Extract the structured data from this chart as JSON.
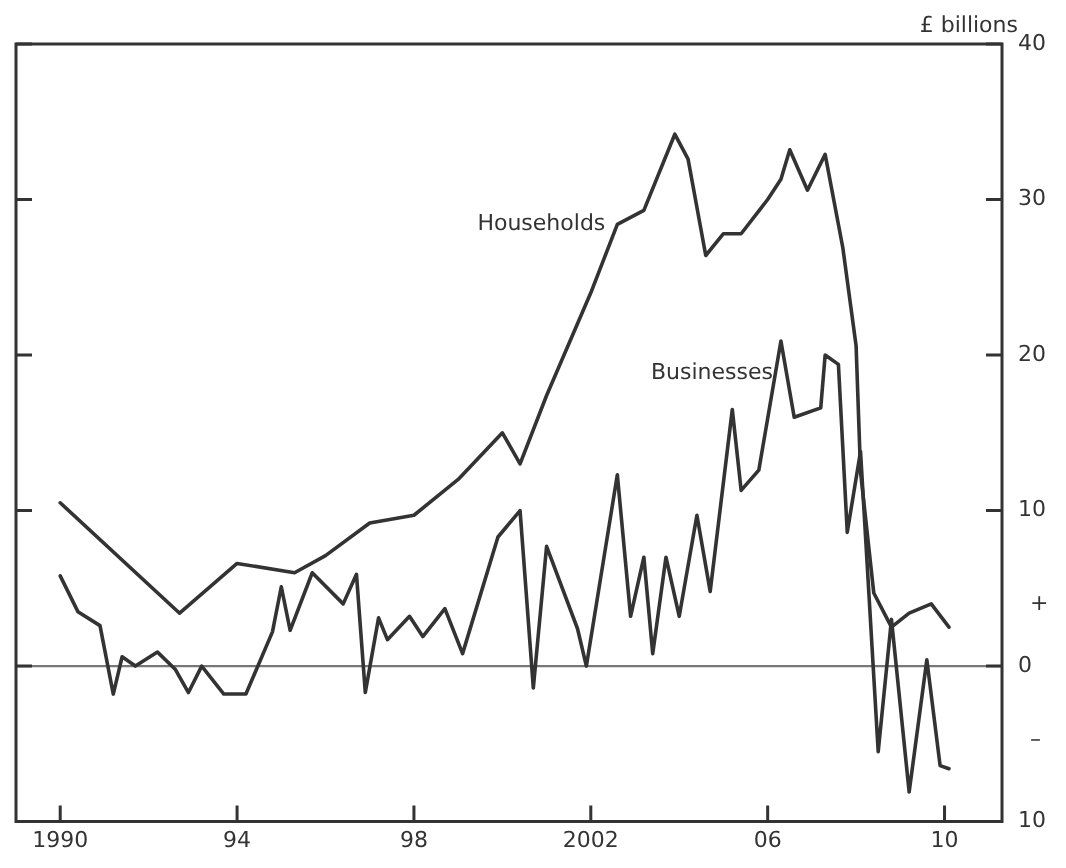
{
  "chart_data": {
    "type": "line",
    "ylabel": "£ billions",
    "xlim": [
      1989.0,
      2011.3
    ],
    "xticks": [
      {
        "value": 1990,
        "label": "1990"
      },
      {
        "value": 1994,
        "label": "94"
      },
      {
        "value": 1998,
        "label": "98"
      },
      {
        "value": 2002,
        "label": "2002"
      },
      {
        "value": 2006,
        "label": "06"
      },
      {
        "value": 2010,
        "label": "10"
      }
    ],
    "ylim": [
      -10,
      40
    ],
    "yticks": [
      {
        "value": -10,
        "label": "10"
      },
      0,
      10,
      20,
      30,
      40
    ],
    "annotations": [
      "+",
      "–"
    ],
    "ref_lines": [
      {
        "axis": "y",
        "value": 0,
        "color": "#777777"
      }
    ],
    "grid": false,
    "legend": false,
    "marker": "none",
    "line_style": "solid",
    "series": [
      {
        "name": "Households",
        "color": "#333333",
        "x": [
          1990.0,
          1992.7,
          1994.0,
          1995.3,
          1996.0,
          1997.0,
          1998.0,
          1999.0,
          2000.0,
          2000.4,
          2001.0,
          2002.0,
          2002.6,
          2003.2,
          2003.9,
          2004.2,
          2004.6,
          2005.0,
          2005.4,
          2006.0,
          2006.3,
          2006.5,
          2006.9,
          2007.3,
          2007.7,
          2008.0,
          2008.1,
          2008.4,
          2008.8,
          2009.2,
          2009.7,
          2010.1
        ],
        "values": [
          10.5,
          3.4,
          6.6,
          6,
          7.1,
          9.2,
          9.7,
          12,
          15,
          13,
          17.4,
          24,
          28.4,
          29.3,
          34.2,
          32.6,
          26.4,
          27.8,
          27.8,
          30,
          31.3,
          33.2,
          30.6,
          32.9,
          26.9,
          20.6,
          12.5,
          4.7,
          2.5,
          3.4,
          4,
          2.5
        ]
      },
      {
        "name": "Businesses",
        "color": "#333333",
        "x": [
          1990.0,
          1990.4,
          1990.9,
          1991.2,
          1991.4,
          1991.7,
          1992.2,
          1992.6,
          1992.9,
          1993.2,
          1993.7,
          1994.2,
          1994.8,
          1995.0,
          1995.2,
          1995.7,
          1996.4,
          1996.7,
          1996.9,
          1997.2,
          1997.4,
          1997.9,
          1998.2,
          1998.7,
          1999.1,
          1999.9,
          2000.4,
          2000.7,
          2001.0,
          2001.7,
          2001.9,
          2002.6,
          2002.9,
          2003.2,
          2003.4,
          2003.7,
          2004.0,
          2004.4,
          2004.7,
          2005.2,
          2005.4,
          2005.8,
          2006.3,
          2006.6,
          2007.2,
          2007.3,
          2007.6,
          2007.8,
          2008.1,
          2008.5,
          2008.8,
          2009.2,
          2009.6,
          2009.9,
          2010.1
        ],
        "values": [
          5.8,
          3.5,
          2.6,
          -1.8,
          0.6,
          0,
          0.9,
          -0.2,
          -1.7,
          0,
          -1.8,
          -1.8,
          2.2,
          5.1,
          2.3,
          6,
          4,
          5.9,
          -1.7,
          3.1,
          1.7,
          3.2,
          1.9,
          3.7,
          0.8,
          8.3,
          10,
          -1.4,
          7.7,
          2.4,
          0,
          12.3,
          3.2,
          7,
          0.8,
          7,
          3.2,
          9.7,
          4.8,
          16.5,
          11.3,
          12.6,
          20.9,
          16,
          16.6,
          20,
          19.4,
          8.6,
          13.8,
          -5.5,
          3,
          -8.1,
          0.4,
          -6.4,
          -6.6
        ]
      }
    ]
  }
}
